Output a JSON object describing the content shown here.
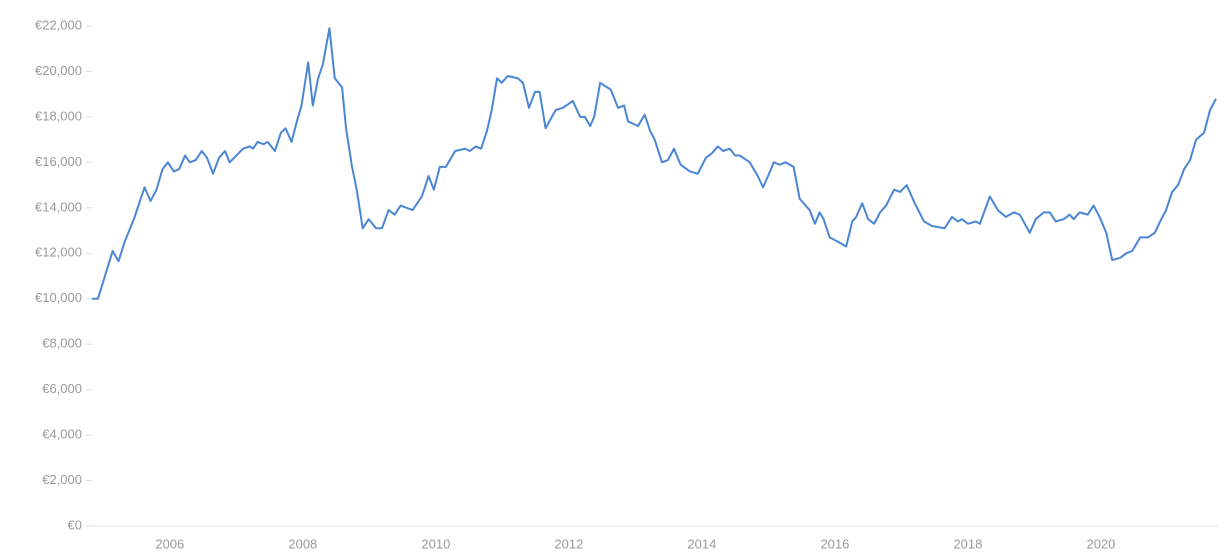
{
  "chart_data": {
    "type": "line",
    "x": [
      2004.83,
      2004.92,
      2005.14,
      2005.23,
      2005.32,
      2005.46,
      2005.62,
      2005.71,
      2005.8,
      2005.89,
      2005.97,
      2006.06,
      2006.14,
      2006.23,
      2006.3,
      2006.39,
      2006.48,
      2006.56,
      2006.65,
      2006.74,
      2006.83,
      2006.9,
      2007.0,
      2007.1,
      2007.2,
      2007.25,
      2007.32,
      2007.41,
      2007.47,
      2007.58,
      2007.67,
      2007.74,
      2007.83,
      2007.91,
      2007.98,
      2008.08,
      2008.15,
      2008.23,
      2008.3,
      2008.4,
      2008.48,
      2008.59,
      2008.65,
      2008.74,
      2008.81,
      2008.9,
      2008.99,
      2009.1,
      2009.19,
      2009.29,
      2009.38,
      2009.47,
      2009.65,
      2009.79,
      2009.89,
      2009.97,
      2010.06,
      2010.15,
      2010.29,
      2010.44,
      2010.51,
      2010.6,
      2010.68,
      2010.77,
      2010.84,
      2010.92,
      2010.99,
      2011.08,
      2011.23,
      2011.31,
      2011.4,
      2011.49,
      2011.56,
      2011.65,
      2011.8,
      2011.91,
      2012.06,
      2012.17,
      2012.24,
      2012.32,
      2012.38,
      2012.47,
      2012.63,
      2012.74,
      2012.83,
      2012.89,
      2013.04,
      2013.14,
      2013.22,
      2013.29,
      2013.4,
      2013.49,
      2013.58,
      2013.68,
      2013.82,
      2013.94,
      2014.06,
      2014.15,
      2014.24,
      2014.32,
      2014.42,
      2014.5,
      2014.57,
      2014.72,
      2014.84,
      2014.92,
      2015.01,
      2015.08,
      2015.17,
      2015.26,
      2015.38,
      2015.47,
      2015.62,
      2015.7,
      2015.77,
      2015.83,
      2015.92,
      2016.05,
      2016.17,
      2016.26,
      2016.32,
      2016.41,
      2016.5,
      2016.59,
      2016.68,
      2016.77,
      2016.89,
      2016.98,
      2017.08,
      2017.2,
      2017.34,
      2017.46,
      2017.65,
      2017.76,
      2017.85,
      2017.91,
      2018.0,
      2018.12,
      2018.18,
      2018.33,
      2018.45,
      2018.57,
      2018.69,
      2018.78,
      2018.93,
      2019.02,
      2019.14,
      2019.23,
      2019.32,
      2019.44,
      2019.53,
      2019.59,
      2019.68,
      2019.8,
      2019.89,
      2019.98,
      2020.08,
      2020.17,
      2020.29,
      2020.38,
      2020.47,
      2020.59,
      2020.71,
      2020.81,
      2020.89,
      2020.98,
      2021.07,
      2021.16,
      2021.25,
      2021.34,
      2021.43,
      2021.55,
      2021.64,
      2021.73
    ],
    "values": [
      10000,
      10000,
      12100,
      11650,
      12500,
      13500,
      14900,
      14300,
      14800,
      15700,
      16000,
      15600,
      15700,
      16300,
      16000,
      16100,
      16500,
      16200,
      15500,
      16200,
      16500,
      16000,
      16300,
      16600,
      16700,
      16600,
      16900,
      16800,
      16900,
      16500,
      17300,
      17500,
      16900,
      17800,
      18500,
      20400,
      18500,
      19700,
      20300,
      21900,
      19700,
      19300,
      17500,
      15800,
      14800,
      13100,
      13500,
      13100,
      13100,
      13900,
      13700,
      14100,
      13900,
      14500,
      15400,
      14800,
      15800,
      15800,
      16500,
      16600,
      16500,
      16700,
      16600,
      17400,
      18300,
      19700,
      19500,
      19800,
      19700,
      19500,
      18400,
      19100,
      19100,
      17500,
      18300,
      18400,
      18700,
      18000,
      18000,
      17600,
      18000,
      19500,
      19200,
      18400,
      18500,
      17800,
      17600,
      18100,
      17400,
      17000,
      16000,
      16100,
      16600,
      15900,
      15600,
      15500,
      16200,
      16400,
      16700,
      16500,
      16600,
      16300,
      16300,
      16000,
      15400,
      14900,
      15500,
      16000,
      15900,
      16000,
      15800,
      14400,
      13900,
      13300,
      13800,
      13500,
      12700,
      12500,
      12300,
      13400,
      13600,
      14200,
      13500,
      13300,
      13800,
      14100,
      14800,
      14700,
      15000,
      14200,
      13400,
      13200,
      13100,
      13600,
      13400,
      13500,
      13300,
      13400,
      13300,
      14500,
      13900,
      13600,
      13800,
      13700,
      12900,
      13500,
      13800,
      13800,
      13400,
      13500,
      13700,
      13500,
      13800,
      13700,
      14100,
      13600,
      12900,
      11700,
      11800,
      12000,
      12100,
      12700,
      12700,
      12900,
      13400,
      13900,
      14700,
      15000,
      15700,
      16100,
      17000,
      17300,
      18300,
      18800
    ],
    "color": "#4a86d4",
    "xlim": [
      2004.83,
      2021.76
    ],
    "xticks": [
      2006,
      2008,
      2010,
      2012,
      2014,
      2016,
      2018,
      2020
    ],
    "ylim": [
      0,
      22000
    ],
    "yticks": [
      {
        "value": 0,
        "label": "€0"
      },
      {
        "value": 2000,
        "label": "€2,000"
      },
      {
        "value": 4000,
        "label": "€4,000"
      },
      {
        "value": 6000,
        "label": "€6,000"
      },
      {
        "value": 8000,
        "label": "€8,000"
      },
      {
        "value": 10000,
        "label": "€10,000"
      },
      {
        "value": 12000,
        "label": "€12,000"
      },
      {
        "value": 14000,
        "label": "€14,000"
      },
      {
        "value": 16000,
        "label": "€16,000"
      },
      {
        "value": 18000,
        "label": "€18,000"
      },
      {
        "value": 20000,
        "label": "€20,000"
      },
      {
        "value": 22000,
        "label": "€22,000"
      }
    ]
  }
}
